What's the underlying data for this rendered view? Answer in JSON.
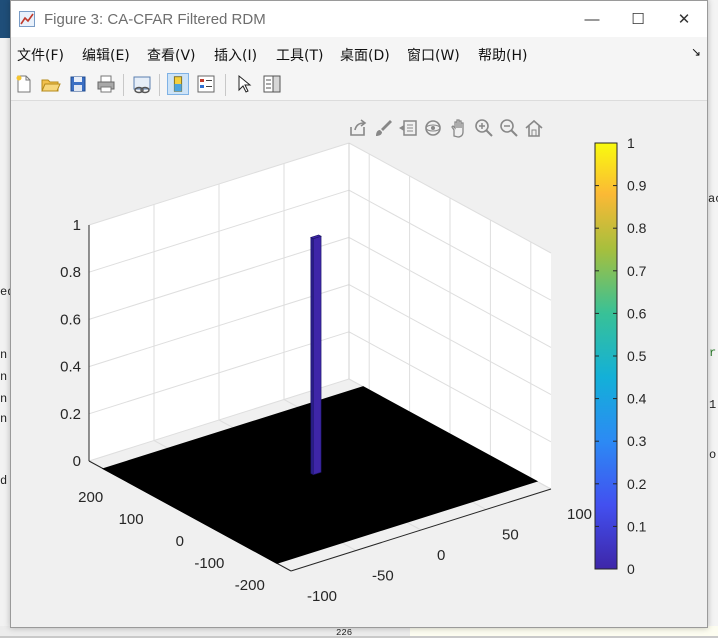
{
  "window": {
    "title": "Figure 3: CA-CFAR Filtered RDM",
    "controls": {
      "minimize": "—",
      "maximize": "☐",
      "close": "✕"
    }
  },
  "menu": {
    "items": [
      "文件(F)",
      "编辑(E)",
      "查看(V)",
      "插入(I)",
      "工具(T)",
      "桌面(D)",
      "窗口(W)",
      "帮助(H)"
    ],
    "overflow_arrow": "↘"
  },
  "toolbar": {
    "icons": [
      "new-figure-icon",
      "open-file-icon",
      "save-icon",
      "print-icon",
      "link-plot-icon",
      "colorbar-toggle-icon",
      "legend-toggle-icon",
      "edit-plot-icon",
      "property-inspector-icon"
    ],
    "active": "colorbar-toggle-icon"
  },
  "axes_toolbar": {
    "icons": [
      "export-icon",
      "brush-icon",
      "datatip-icon",
      "rotate-3d-icon",
      "pan-icon",
      "zoom-in-icon",
      "zoom-out-icon",
      "home-icon"
    ]
  },
  "background_fragments": [
    "ac",
    "ed",
    "n",
    "n",
    "n",
    "n",
    "d",
    "r",
    "1",
    "o",
    "226"
  ],
  "chart_data": {
    "type": "surface",
    "view": "3d",
    "title": "",
    "xlabel": "",
    "ylabel": "",
    "zlabel": "",
    "x_ticks": [
      -100,
      -50,
      0,
      50,
      100
    ],
    "y_ticks": [
      -200,
      -100,
      0,
      100,
      200
    ],
    "z_ticks": [
      0,
      0.2,
      0.4,
      0.6,
      0.8,
      1
    ],
    "z_tick_labels": [
      "0",
      "0.2",
      "0.4",
      "0.6",
      "0.8",
      "1"
    ],
    "xlim": [
      -100,
      100
    ],
    "ylim": [
      -250,
      250
    ],
    "zlim": [
      0,
      1
    ],
    "surface": "zero everywhere except a single detected cell",
    "peak": {
      "x": 0,
      "y": 10,
      "z": 1
    },
    "grid": true,
    "colormap": "parula",
    "colorbar": {
      "ticks": [
        0,
        0.1,
        0.2,
        0.3,
        0.4,
        0.5,
        0.6,
        0.7,
        0.8,
        0.9,
        1
      ],
      "labels": [
        "0",
        "0.1",
        "0.2",
        "0.3",
        "0.4",
        "0.5",
        "0.6",
        "0.7",
        "0.8",
        "0.9",
        "1"
      ],
      "placement": "right"
    },
    "floor_color": "#000000",
    "colors": {
      "min": "#3e26a8",
      "mid": "#14b5ca",
      "max": "#f9fb0e"
    }
  }
}
